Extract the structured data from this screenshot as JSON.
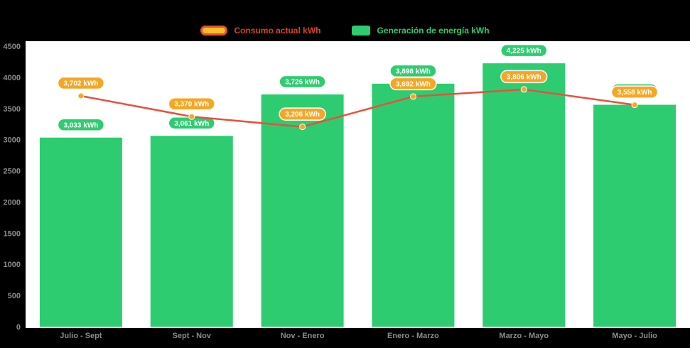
{
  "chart_data": {
    "type": "bar+line",
    "title": "",
    "categories": [
      "Julio - Sept",
      "Sept - Nov",
      "Nov - Enero",
      "Enero - Marzo",
      "Marzo - Mayo",
      "Mayo - Julio"
    ],
    "series": [
      {
        "name": "Consumo actual kWh",
        "type": "line",
        "values": [
          3702,
          3370,
          3206,
          3692,
          3806,
          3558
        ],
        "labels": [
          "3,702 kWh",
          "3,370 kWh",
          "3,206 kWh",
          "3,692 kWh",
          "3,806 kWh",
          "3,558 kWh"
        ],
        "color": "#e8503c",
        "marker_color": "#f6a623",
        "badge_color": "#f6a623"
      },
      {
        "name": "Generación de energía kWh",
        "type": "bar",
        "values": [
          3033,
          3061,
          3726,
          3898,
          4225,
          3560
        ],
        "labels": [
          "3,033 kWh",
          "3,061 kWh",
          "3,726 kWh",
          "3,898 kWh",
          "4,225 kWh",
          ""
        ],
        "color": "#2ecc71",
        "badge_color": "#2ecc71"
      }
    ],
    "xlabel": "",
    "ylabel": "",
    "ylim": [
      0,
      4500
    ],
    "y_ticks": [
      0,
      500,
      1000,
      1500,
      2000,
      2500,
      3000,
      3500,
      4000,
      4500
    ],
    "grid": false,
    "legend_position": "top",
    "plot_background": "#ffffff",
    "page_background": "#000000",
    "axis_text_color": "#8c8c8c"
  },
  "legend": {
    "consumption_label": "Consumo actual kWh",
    "generation_label": "Generación de energía kWh"
  }
}
